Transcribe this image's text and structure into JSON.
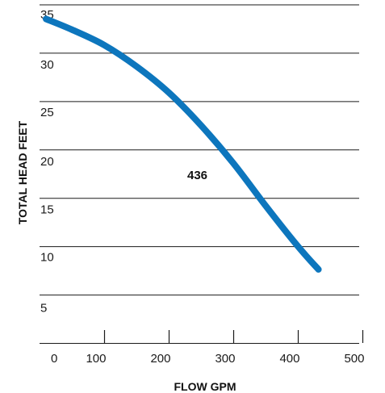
{
  "chart_data": {
    "type": "line",
    "xlabel": "FLOW GPM",
    "ylabel": "TOTAL HEAD FEET",
    "xlim": [
      0,
      500
    ],
    "ylim": [
      0,
      35
    ],
    "x_ticks": [
      0,
      100,
      200,
      300,
      400,
      500
    ],
    "y_ticks": [
      5,
      10,
      15,
      20,
      25,
      30,
      35
    ],
    "grid": "horizontal",
    "colors": {
      "curve": "#0d76bd",
      "grid": "#1a1a1a"
    },
    "series": [
      {
        "name": "436",
        "x": [
          10,
          50,
          100,
          150,
          200,
          250,
          300,
          350,
          400,
          432
        ],
        "y": [
          33.5,
          32.4,
          30.8,
          28.6,
          25.9,
          22.5,
          18.6,
          14.2,
          10.0,
          7.6
        ]
      }
    ]
  }
}
